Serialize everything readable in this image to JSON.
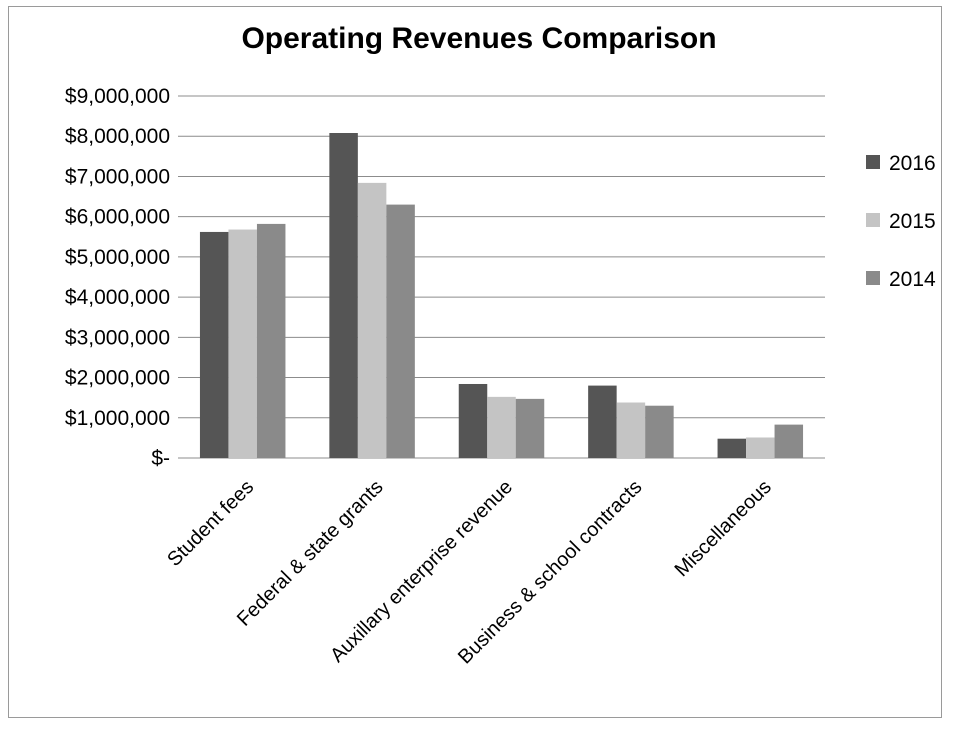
{
  "chart_data": {
    "type": "bar",
    "title": "Operating Revenues Comparison",
    "xlabel": "",
    "ylabel": "",
    "categories": [
      "Student fees",
      "Federal & state grants",
      "Auxillary enterprise revenue",
      "Business & school contracts",
      "Miscellaneous"
    ],
    "series": [
      {
        "name": "2016",
        "color": "#555555",
        "values": [
          5620000,
          8080000,
          1840000,
          1800000,
          480000
        ]
      },
      {
        "name": "2015",
        "color": "#c4c4c4",
        "values": [
          5680000,
          6840000,
          1520000,
          1380000,
          510000
        ]
      },
      {
        "name": "2014",
        "color": "#8a8a8a",
        "values": [
          5820000,
          6300000,
          1470000,
          1300000,
          830000
        ]
      }
    ],
    "ylim": [
      0,
      9000000
    ],
    "yticks": [
      "$-",
      "$1,000,000",
      "$2,000,000",
      "$3,000,000",
      "$4,000,000",
      "$5,000,000",
      "$6,000,000",
      "$7,000,000",
      "$8,000,000",
      "$9,000,000"
    ],
    "grid": true,
    "legend_position": "right"
  }
}
